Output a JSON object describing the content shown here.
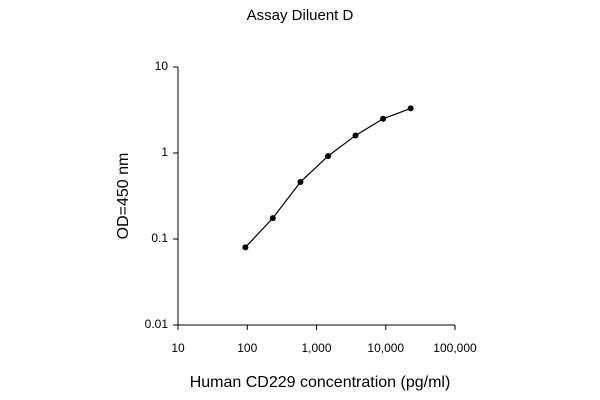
{
  "chart_data": {
    "type": "line",
    "title": "Assay Diluent D",
    "x_label": "Human CD229 concentration (pg/ml)",
    "y_label": "OD=450 nm",
    "x": [
      94,
      234,
      586,
      1465,
      3662,
      9155,
      22888
    ],
    "series": [
      {
        "name": "Assay Diluent D",
        "color": "#000000",
        "values": [
          0.08,
          0.175,
          0.46,
          0.92,
          1.6,
          2.5,
          3.3
        ]
      }
    ],
    "xlim": [
      10,
      100000
    ],
    "ylim": [
      0.01,
      10
    ],
    "xticks": [
      10,
      100,
      {
        "value": 1000,
        "label": "1,000"
      },
      {
        "value": 10000,
        "label": "10,000"
      },
      {
        "value": 100000,
        "label": "100,000"
      }
    ],
    "yticks": [
      0.01,
      0.1,
      1,
      10
    ],
    "xscale": "log",
    "yscale": "log",
    "grid": false
  }
}
